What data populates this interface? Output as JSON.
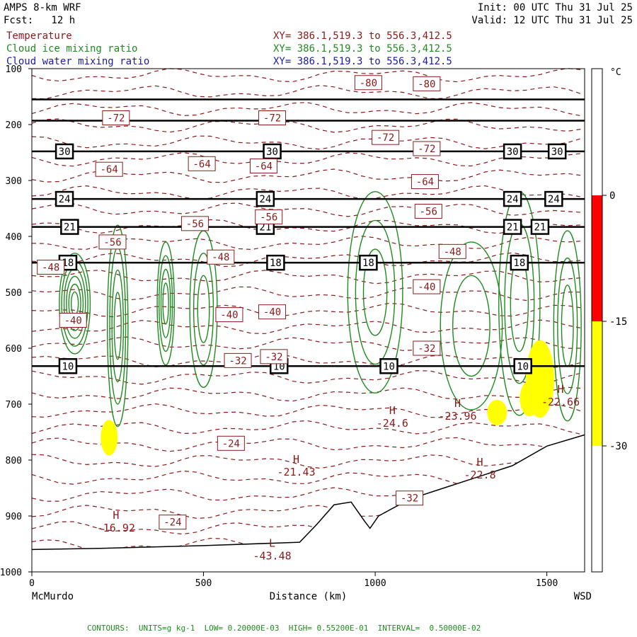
{
  "header": {
    "model": "AMPS 8-km WRF",
    "forecast": "Fcst:   12 h",
    "init": "Init: 00 UTC Thu 31 Jul 25",
    "valid": "Valid: 12 UTC Thu 31 Jul 25",
    "fields": [
      {
        "name": "Temperature",
        "xy": "XY= 386.1,519.3 to 556.3,412.5",
        "color": "#8b1a1a"
      },
      {
        "name": "Cloud ice mixing ratio",
        "xy": "XY= 386.1,519.3 to 556.3,412.5",
        "color": "#1f8b1f"
      },
      {
        "name": "Cloud water mixing ratio",
        "xy": "XY= 386.1,519.3 to 556.3,412.5",
        "color": "#1a1aa8"
      }
    ]
  },
  "footer": "CONTOURS:  UNITS=g kg-1  LOW= 0.20000E-03  HIGH= 0.55200E-01  INTERVAL=  0.50000E-02",
  "chart_data": {
    "type": "contour_cross_section",
    "xlabel": "Distance (km)",
    "x_ticks": [
      0,
      500,
      1000,
      1500
    ],
    "xlim": [
      0,
      1610
    ],
    "y_ticks": [
      100,
      200,
      300,
      400,
      500,
      600,
      700,
      800,
      900,
      1000
    ],
    "ylim": [
      100,
      1000
    ],
    "x_endpoints": {
      "left": "McMurdo",
      "right": "WSD"
    },
    "colorbar": {
      "unit": "°C",
      "ticks": [
        0,
        -15,
        -30
      ],
      "bands": [
        {
          "from": 0,
          "to": -15,
          "color": "#ff0000"
        },
        {
          "from": -15,
          "to": -30,
          "color": "#ffff00"
        }
      ]
    },
    "levels": [
      {
        "label": "30",
        "y": 248
      },
      {
        "label": "24",
        "y": 333
      },
      {
        "label": "21",
        "y": 383
      },
      {
        "label": "18",
        "y": 447
      },
      {
        "label": "10",
        "y": 632
      },
      {
        "label": "",
        "y": 155
      },
      {
        "label": "",
        "y": 193
      }
    ],
    "level_label_x": {
      "30": [
        95,
        700,
        1400,
        1530
      ],
      "24": [
        95,
        680,
        1400,
        1520
      ],
      "21": [
        110,
        680,
        1400,
        1480
      ],
      "18": [
        105,
        710,
        980,
        1420
      ],
      "10": [
        105,
        720,
        1040,
        1430
      ]
    },
    "temperature_labels": [
      {
        "text": "-80",
        "x": 980,
        "y": 125
      },
      {
        "text": "-80",
        "x": 1150,
        "y": 127
      },
      {
        "text": "-72",
        "x": 245,
        "y": 188
      },
      {
        "text": "-72",
        "x": 700,
        "y": 188
      },
      {
        "text": "-72",
        "x": 1030,
        "y": 223
      },
      {
        "text": "-72",
        "x": 1150,
        "y": 243
      },
      {
        "text": "-64",
        "x": 225,
        "y": 280
      },
      {
        "text": "-64",
        "x": 495,
        "y": 270
      },
      {
        "text": "-64",
        "x": 675,
        "y": 274
      },
      {
        "text": "-64",
        "x": 1145,
        "y": 302
      },
      {
        "text": "-56",
        "x": 235,
        "y": 410
      },
      {
        "text": "-56",
        "x": 475,
        "y": 377
      },
      {
        "text": "-56",
        "x": 690,
        "y": 365
      },
      {
        "text": "-56",
        "x": 1155,
        "y": 355
      },
      {
        "text": "-48",
        "x": 55,
        "y": 455
      },
      {
        "text": "-48",
        "x": 550,
        "y": 437
      },
      {
        "text": "-48",
        "x": 1225,
        "y": 427
      },
      {
        "text": "-40",
        "x": 120,
        "y": 550
      },
      {
        "text": "-40",
        "x": 575,
        "y": 540
      },
      {
        "text": "-40",
        "x": 700,
        "y": 535
      },
      {
        "text": "-40",
        "x": 1150,
        "y": 490
      },
      {
        "text": "-32",
        "x": 600,
        "y": 622
      },
      {
        "text": "-32",
        "x": 705,
        "y": 615
      },
      {
        "text": "-32",
        "x": 1150,
        "y": 600
      },
      {
        "text": "-32",
        "x": 1100,
        "y": 868
      },
      {
        "text": "-24",
        "x": 580,
        "y": 770
      },
      {
        "text": "-24",
        "x": 410,
        "y": 911
      }
    ],
    "extrema": [
      {
        "kind": "H",
        "value": "-16.92",
        "x": 245,
        "y": 905
      },
      {
        "kind": "H",
        "value": "-21.43",
        "x": 770,
        "y": 805
      },
      {
        "kind": "H",
        "value": "-24.6",
        "x": 1050,
        "y": 718
      },
      {
        "kind": "H",
        "value": "-23.96",
        "x": 1240,
        "y": 705
      },
      {
        "kind": "H",
        "value": "-22.8",
        "x": 1305,
        "y": 810
      },
      {
        "kind": "H",
        "value": "-22.66",
        "x": 1540,
        "y": 680
      },
      {
        "kind": "L",
        "value": "-43.48",
        "x": 700,
        "y": 955
      }
    ],
    "terrain": [
      [
        0,
        960
      ],
      [
        200,
        958
      ],
      [
        500,
        953
      ],
      [
        780,
        947
      ],
      [
        830,
        915
      ],
      [
        880,
        880
      ],
      [
        930,
        875
      ],
      [
        970,
        910
      ],
      [
        985,
        922
      ],
      [
        1010,
        900
      ],
      [
        1100,
        870
      ],
      [
        1200,
        850
      ],
      [
        1300,
        830
      ],
      [
        1400,
        810
      ],
      [
        1500,
        775
      ],
      [
        1610,
        755
      ]
    ],
    "shading_yellow": [
      {
        "x": 225,
        "y": 760,
        "rx": 12,
        "ry": 25
      },
      {
        "x": 1355,
        "y": 715,
        "rx": 14,
        "ry": 18
      },
      {
        "x": 1480,
        "y": 655,
        "rx": 20,
        "ry": 55
      },
      {
        "x": 1450,
        "y": 690,
        "rx": 14,
        "ry": 25
      }
    ]
  }
}
